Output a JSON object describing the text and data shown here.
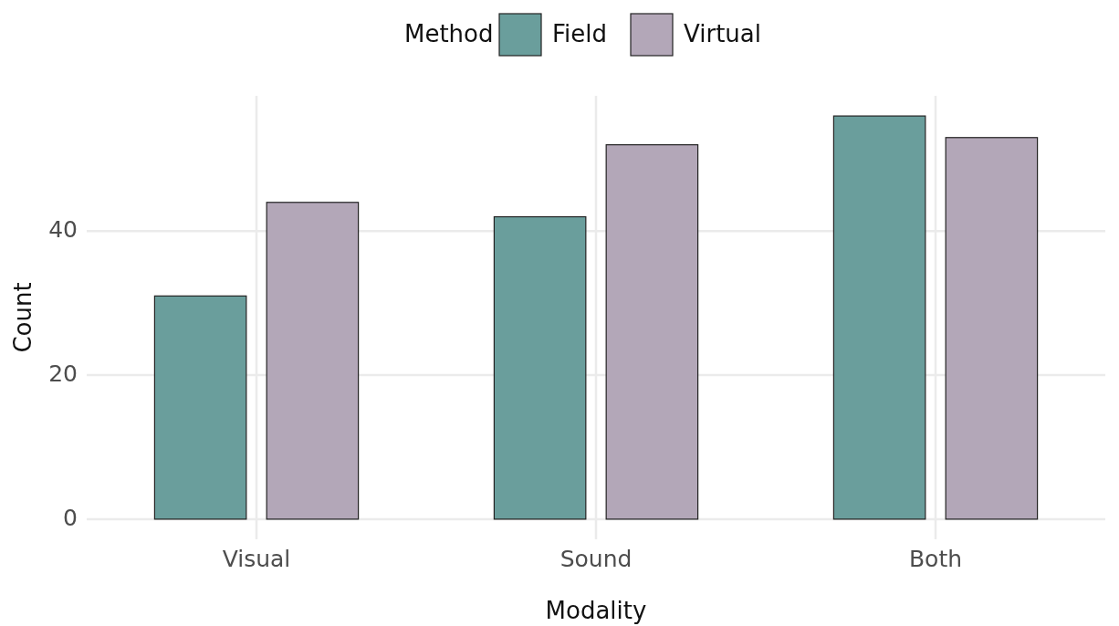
{
  "chart_data": {
    "type": "bar",
    "xlabel": "Modality",
    "ylabel": "Count",
    "legend_title": "Method",
    "categories": [
      "Visual",
      "Sound",
      "Both"
    ],
    "series": [
      {
        "name": "Field",
        "color": "#6a9e9c",
        "values": [
          31,
          42,
          56
        ]
      },
      {
        "name": "Virtual",
        "color": "#b3a7b8",
        "values": [
          44,
          52,
          53
        ]
      }
    ],
    "ylim": [
      -2.8,
      58.8
    ],
    "yticks": [
      0,
      20,
      40
    ],
    "grid": true,
    "legend": "top"
  }
}
